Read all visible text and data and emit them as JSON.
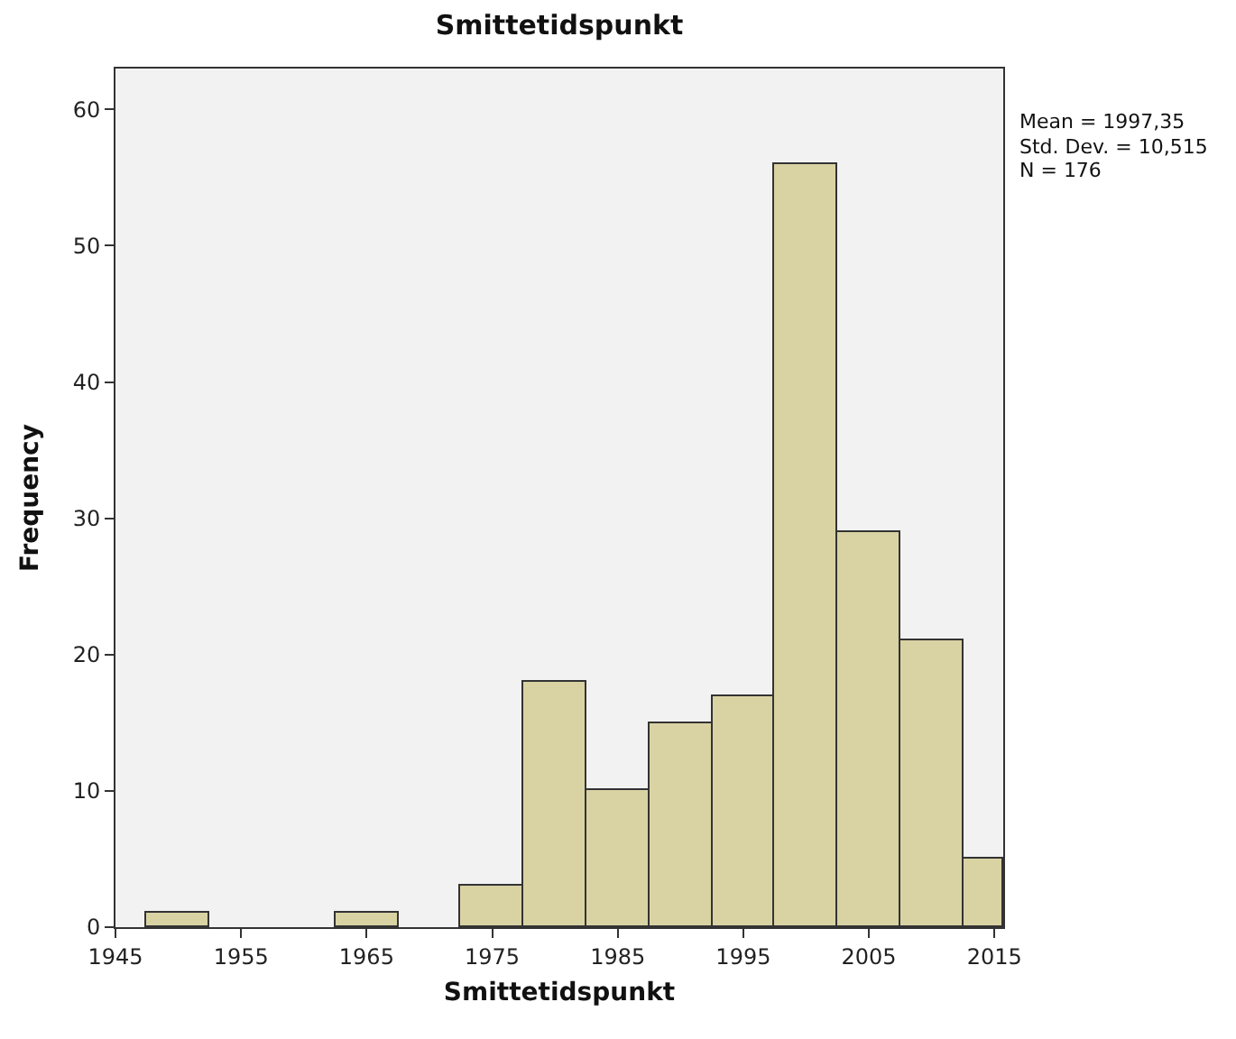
{
  "chart_data": {
    "type": "histogram",
    "title": "Smittetidspunkt",
    "xlabel": "Smittetidspunkt",
    "ylabel": "Frequency",
    "bins": [
      1947.5,
      1952.5,
      1962.5,
      1967.5,
      1972.5,
      1977.5,
      1982.5,
      1987.5,
      1992.5,
      1997.5,
      2002.5,
      2007.5,
      2012.5,
      2015.7
    ],
    "values": [
      1,
      0,
      1,
      0,
      3,
      18,
      10,
      15,
      17,
      56,
      29,
      21,
      5
    ],
    "color": "#d9d3a4",
    "xlim": [
      1945,
      2015.7
    ],
    "xticks": [
      1945,
      1955,
      1965,
      1975,
      1985,
      1995,
      2005,
      2015
    ],
    "ylim": [
      0,
      63
    ],
    "yticks": [
      0,
      10,
      20,
      30,
      40,
      50,
      60
    ],
    "annotations": [
      "Mean = 1997,35",
      "Std. Dev. = 10,515",
      "N = 176"
    ],
    "grid": false
  }
}
